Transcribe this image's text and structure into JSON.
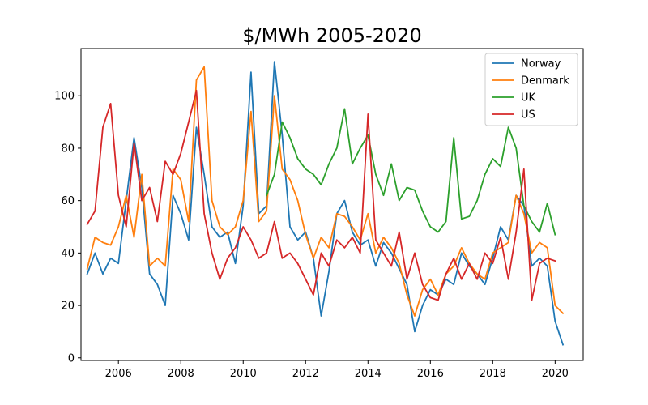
{
  "chart_data": {
    "type": "line",
    "title": "$/MWh 2005-2020",
    "xlabel": "",
    "ylabel": "",
    "xlim": [
      2004.8,
      2020.9
    ],
    "ylim": [
      -1,
      118
    ],
    "x_ticks": [
      2006,
      2008,
      2010,
      2012,
      2014,
      2016,
      2018,
      2020
    ],
    "x_tick_labels": [
      "2006",
      "2008",
      "2010",
      "2012",
      "2014",
      "2016",
      "2018",
      "2020"
    ],
    "y_ticks": [
      0,
      20,
      40,
      60,
      80,
      100
    ],
    "y_tick_labels": [
      "0",
      "20",
      "40",
      "60",
      "80",
      "100"
    ],
    "grid": false,
    "legend_position": "top-right",
    "series": [
      {
        "name": "Norway",
        "color": "#1f77b4",
        "x": [
          2005.0,
          2005.25,
          2005.5,
          2005.75,
          2006.0,
          2006.25,
          2006.5,
          2006.75,
          2007.0,
          2007.25,
          2007.5,
          2007.75,
          2008.0,
          2008.25,
          2008.5,
          2008.75,
          2009.0,
          2009.25,
          2009.5,
          2009.75,
          2010.0,
          2010.25,
          2010.5,
          2010.75,
          2011.0,
          2011.25,
          2011.5,
          2011.75,
          2012.0,
          2012.25,
          2012.5,
          2012.75,
          2013.0,
          2013.25,
          2013.5,
          2013.75,
          2014.0,
          2014.25,
          2014.5,
          2014.75,
          2015.0,
          2015.25,
          2015.5,
          2015.75,
          2016.0,
          2016.25,
          2016.5,
          2016.75,
          2017.0,
          2017.25,
          2017.5,
          2017.75,
          2018.0,
          2018.25,
          2018.5,
          2018.75,
          2019.0,
          2019.25,
          2019.5,
          2019.75,
          2020.0,
          2020.25
        ],
        "values": [
          32,
          40,
          32,
          38,
          36,
          60,
          84,
          65,
          32,
          28,
          20,
          62,
          55,
          45,
          88,
          70,
          50,
          46,
          48,
          36,
          58,
          109,
          55,
          58,
          113,
          85,
          50,
          45,
          48,
          38,
          16,
          33,
          55,
          60,
          48,
          43,
          45,
          35,
          44,
          40,
          34,
          28,
          10,
          20,
          26,
          24,
          30,
          28,
          40,
          35,
          32,
          28,
          38,
          50,
          45,
          62,
          58,
          35,
          38,
          35,
          14,
          5
        ]
      },
      {
        "name": "Denmark",
        "color": "#ff7f0e",
        "x": [
          2005.0,
          2005.25,
          2005.5,
          2005.75,
          2006.0,
          2006.25,
          2006.5,
          2006.75,
          2007.0,
          2007.25,
          2007.5,
          2007.75,
          2008.0,
          2008.25,
          2008.5,
          2008.75,
          2009.0,
          2009.25,
          2009.5,
          2009.75,
          2010.0,
          2010.25,
          2010.5,
          2010.75,
          2011.0,
          2011.25,
          2011.5,
          2011.75,
          2012.0,
          2012.25,
          2012.5,
          2012.75,
          2013.0,
          2013.25,
          2013.5,
          2013.75,
          2014.0,
          2014.25,
          2014.5,
          2014.75,
          2015.0,
          2015.25,
          2015.5,
          2015.75,
          2016.0,
          2016.25,
          2016.5,
          2016.75,
          2017.0,
          2017.25,
          2017.5,
          2017.75,
          2018.0,
          2018.25,
          2018.5,
          2018.75,
          2019.0,
          2019.25,
          2019.5,
          2019.75,
          2020.0,
          2020.25
        ],
        "values": [
          34,
          46,
          44,
          43,
          50,
          62,
          46,
          70,
          35,
          38,
          35,
          72,
          68,
          52,
          106,
          111,
          60,
          50,
          47,
          50,
          60,
          94,
          52,
          56,
          100,
          72,
          68,
          60,
          47,
          38,
          46,
          42,
          55,
          54,
          50,
          45,
          55,
          40,
          46,
          42,
          36,
          24,
          16,
          26,
          30,
          24,
          32,
          35,
          42,
          36,
          32,
          30,
          40,
          42,
          44,
          62,
          55,
          40,
          44,
          42,
          20,
          17
        ]
      },
      {
        "name": "UK",
        "color": "#2ca02c",
        "x": [
          2010.75,
          2011.0,
          2011.25,
          2011.5,
          2011.75,
          2012.0,
          2012.25,
          2012.5,
          2012.75,
          2013.0,
          2013.25,
          2013.5,
          2013.75,
          2014.0,
          2014.25,
          2014.5,
          2014.75,
          2015.0,
          2015.25,
          2015.5,
          2015.75,
          2016.0,
          2016.25,
          2016.5,
          2016.75,
          2017.0,
          2017.25,
          2017.5,
          2017.75,
          2018.0,
          2018.25,
          2018.5,
          2018.75,
          2019.0,
          2019.25,
          2019.5,
          2019.75,
          2020.0
        ],
        "values": [
          62,
          70,
          90,
          84,
          76,
          72,
          70,
          66,
          74,
          80,
          95,
          74,
          80,
          85,
          70,
          62,
          74,
          60,
          65,
          64,
          56,
          50,
          48,
          52,
          84,
          53,
          54,
          60,
          70,
          76,
          73,
          88,
          80,
          58,
          52,
          48,
          59,
          47
        ]
      },
      {
        "name": "US",
        "color": "#d62728",
        "x": [
          2005.0,
          2005.25,
          2005.5,
          2005.75,
          2006.0,
          2006.25,
          2006.5,
          2006.75,
          2007.0,
          2007.25,
          2007.5,
          2007.75,
          2008.0,
          2008.25,
          2008.5,
          2008.75,
          2009.0,
          2009.25,
          2009.5,
          2009.75,
          2010.0,
          2010.25,
          2010.5,
          2010.75,
          2011.0,
          2011.25,
          2011.5,
          2011.75,
          2012.0,
          2012.25,
          2012.5,
          2012.75,
          2013.0,
          2013.25,
          2013.5,
          2013.75,
          2014.0,
          2014.25,
          2014.5,
          2014.75,
          2015.0,
          2015.25,
          2015.5,
          2015.75,
          2016.0,
          2016.25,
          2016.5,
          2016.75,
          2017.0,
          2017.25,
          2017.5,
          2017.75,
          2018.0,
          2018.25,
          2018.5,
          2018.75,
          2019.0,
          2019.25,
          2019.5,
          2019.75,
          2020.0
        ],
        "values": [
          51,
          56,
          88,
          97,
          62,
          50,
          82,
          60,
          65,
          52,
          75,
          70,
          78,
          90,
          102,
          55,
          40,
          30,
          38,
          42,
          50,
          45,
          38,
          40,
          52,
          38,
          40,
          36,
          30,
          24,
          40,
          35,
          45,
          42,
          46,
          40,
          93,
          45,
          40,
          35,
          48,
          30,
          40,
          28,
          23,
          22,
          32,
          38,
          30,
          36,
          30,
          40,
          36,
          46,
          30,
          48,
          72,
          22,
          36,
          38,
          37
        ]
      }
    ]
  }
}
